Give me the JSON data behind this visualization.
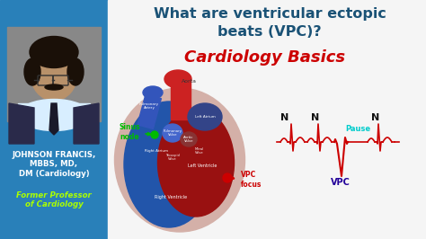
{
  "title_line1": "What are ventricular ectopic",
  "title_line2": "beats (VPC)?",
  "subtitle": "Cardiology Basics",
  "title_color": "#1a5276",
  "subtitle_color": "#cc0000",
  "left_panel_bg": "#2980b9",
  "name_text": "JOHNSON FRANCIS,\nMBBS, MD,\nDM (Cardiology)",
  "name_color": "#ffffff",
  "role_text": "Former Professor\nof Cardiology",
  "role_color": "#aaff00",
  "sinus_node_color": "#00bb00",
  "vpc_focus_color": "#cc0000",
  "ecg_color": "#cc0000",
  "N_label_color": "#111111",
  "VPC_label_color": "#220099",
  "Pause_label_color": "#00cccc",
  "background_main": "#f0f0f0",
  "heart_outer_color": "#d4b0a8",
  "heart_blue_color": "#2255aa",
  "heart_red_color": "#991111",
  "heart_purple_color": "#4444aa",
  "photo_bg": "#888888"
}
